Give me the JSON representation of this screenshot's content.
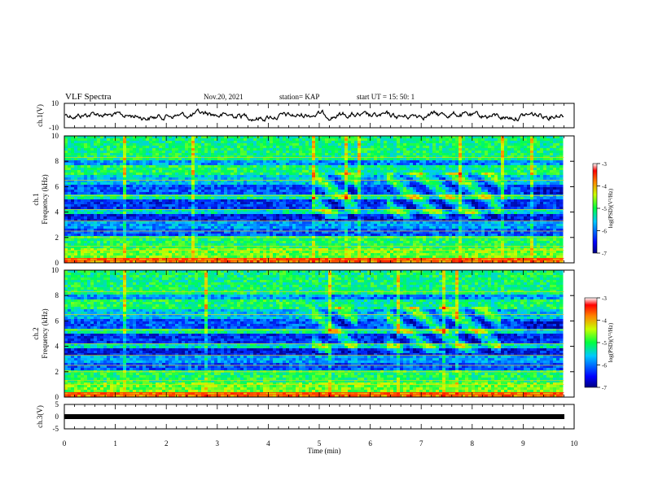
{
  "header": {
    "title": "VLF Spectra",
    "date": "Nov.20, 2021",
    "station": "station= KAP",
    "start": "start  UT  =    15: 50: 1"
  },
  "chart_data": [
    {
      "type": "line",
      "name": "ch1-waveform",
      "ylabel": "ch.1(V)",
      "ylim": [
        -10,
        10
      ],
      "yticks": [
        "10",
        "-10"
      ],
      "xlim": [
        0,
        10
      ],
      "color": "#000000"
    },
    {
      "type": "heatmap",
      "name": "ch1-spectrogram",
      "ylabel": "ch.1\nFrequency (kHz)",
      "ylim": [
        0,
        10
      ],
      "yticks": [
        "0",
        "2",
        "4",
        "6",
        "8",
        "10"
      ],
      "xlim": [
        0,
        10
      ],
      "data_end_min": 9.8,
      "colorbar": {
        "label": "log(PSD)(V²/Hz)",
        "range": [
          -7,
          -3
        ],
        "ticks": [
          "-3",
          "-4",
          "-5",
          "-6",
          "-7"
        ]
      }
    },
    {
      "type": "heatmap",
      "name": "ch2-spectrogram",
      "ylabel": "ch.2\nFrequency (kHz)",
      "ylim": [
        0,
        10
      ],
      "yticks": [
        "0",
        "2",
        "4",
        "6",
        "8",
        "10"
      ],
      "xlim": [
        0,
        10
      ],
      "data_end_min": 9.8,
      "colorbar": {
        "label": "log(PSD)(V²/Hz)",
        "range": [
          -7,
          -3
        ],
        "ticks": [
          "-3",
          "-4",
          "-5",
          "-6",
          "-7"
        ]
      }
    },
    {
      "type": "line",
      "name": "ch3-waveform",
      "ylabel": "ch.3(V)",
      "ylim": [
        -5,
        5
      ],
      "yticks": [
        "5",
        "0",
        "-5"
      ],
      "xlim": [
        0,
        10
      ],
      "value": 0,
      "color": "#000000"
    }
  ],
  "xaxis": {
    "label": "Time (min)",
    "ticks": [
      "0",
      "1",
      "2",
      "3",
      "4",
      "5",
      "6",
      "7",
      "8",
      "9",
      "10"
    ]
  },
  "colorbar_labels": {
    "ch1_unit": "log(PSD)(V²/Hz)",
    "ch2_unit": "log(PSD)(V²/Hz)"
  }
}
